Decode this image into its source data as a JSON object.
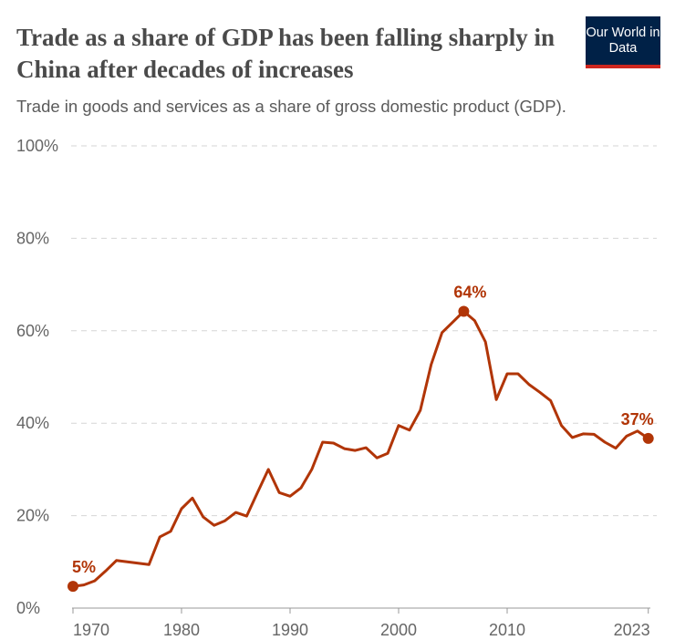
{
  "header": {
    "title": "Trade as a share of GDP has been falling sharply in China after decades of increases",
    "subtitle": "Trade in goods and services as a share of gross domestic product (GDP).",
    "logo": "Our World in Data"
  },
  "chart_data": {
    "type": "line",
    "title": "Trade as a share of GDP has been falling sharply in China after decades of increases",
    "subtitle": "Trade in goods and services as a share of gross domestic product (GDP).",
    "x": [
      1970,
      1971,
      1972,
      1973,
      1974,
      1975,
      1976,
      1977,
      1978,
      1979,
      1980,
      1981,
      1982,
      1983,
      1984,
      1985,
      1986,
      1987,
      1988,
      1989,
      1990,
      1991,
      1992,
      1993,
      1994,
      1995,
      1996,
      1997,
      1998,
      1999,
      2000,
      2001,
      2002,
      2003,
      2004,
      2005,
      2006,
      2007,
      2008,
      2009,
      2010,
      2011,
      2012,
      2013,
      2014,
      2015,
      2016,
      2017,
      2018,
      2019,
      2020,
      2021,
      2022,
      2023
    ],
    "series": [
      {
        "values": [
          4.7,
          5.0,
          5.9,
          8.0,
          10.3,
          10.0,
          9.7,
          9.4,
          15.4,
          16.6,
          21.5,
          23.8,
          19.7,
          17.9,
          18.9,
          20.7,
          19.9,
          25.0,
          30.0,
          25.0,
          24.2,
          26.0,
          30.0,
          35.9,
          35.7,
          34.5,
          34.1,
          34.7,
          32.5,
          33.5,
          39.5,
          38.5,
          42.8,
          52.7,
          59.6,
          61.9,
          64.2,
          62.2,
          57.6,
          45.1,
          50.7,
          50.7,
          48.4,
          46.7,
          44.9,
          39.5,
          36.9,
          37.7,
          37.6,
          35.9,
          34.6,
          37.2,
          38.3,
          36.7
        ],
        "color": "#b13507"
      }
    ],
    "annotations": [
      {
        "year": 1970,
        "label": "5%"
      },
      {
        "year": 2006,
        "label": "64%"
      },
      {
        "year": 2023,
        "label": "37%"
      }
    ],
    "xticks": [
      1970,
      1980,
      1990,
      2000,
      2010,
      2023
    ],
    "xtick_labels": [
      "1970",
      "1980",
      "1990",
      "2000",
      "2010",
      "2023"
    ],
    "ylim": [
      0,
      100
    ],
    "yticks": [
      0,
      20,
      40,
      60,
      80,
      100
    ],
    "ytick_labels": [
      "0%",
      "20%",
      "40%",
      "60%",
      "80%",
      "100%"
    ],
    "grid": "horizontal dashed",
    "xlabel": "",
    "ylabel": ""
  }
}
